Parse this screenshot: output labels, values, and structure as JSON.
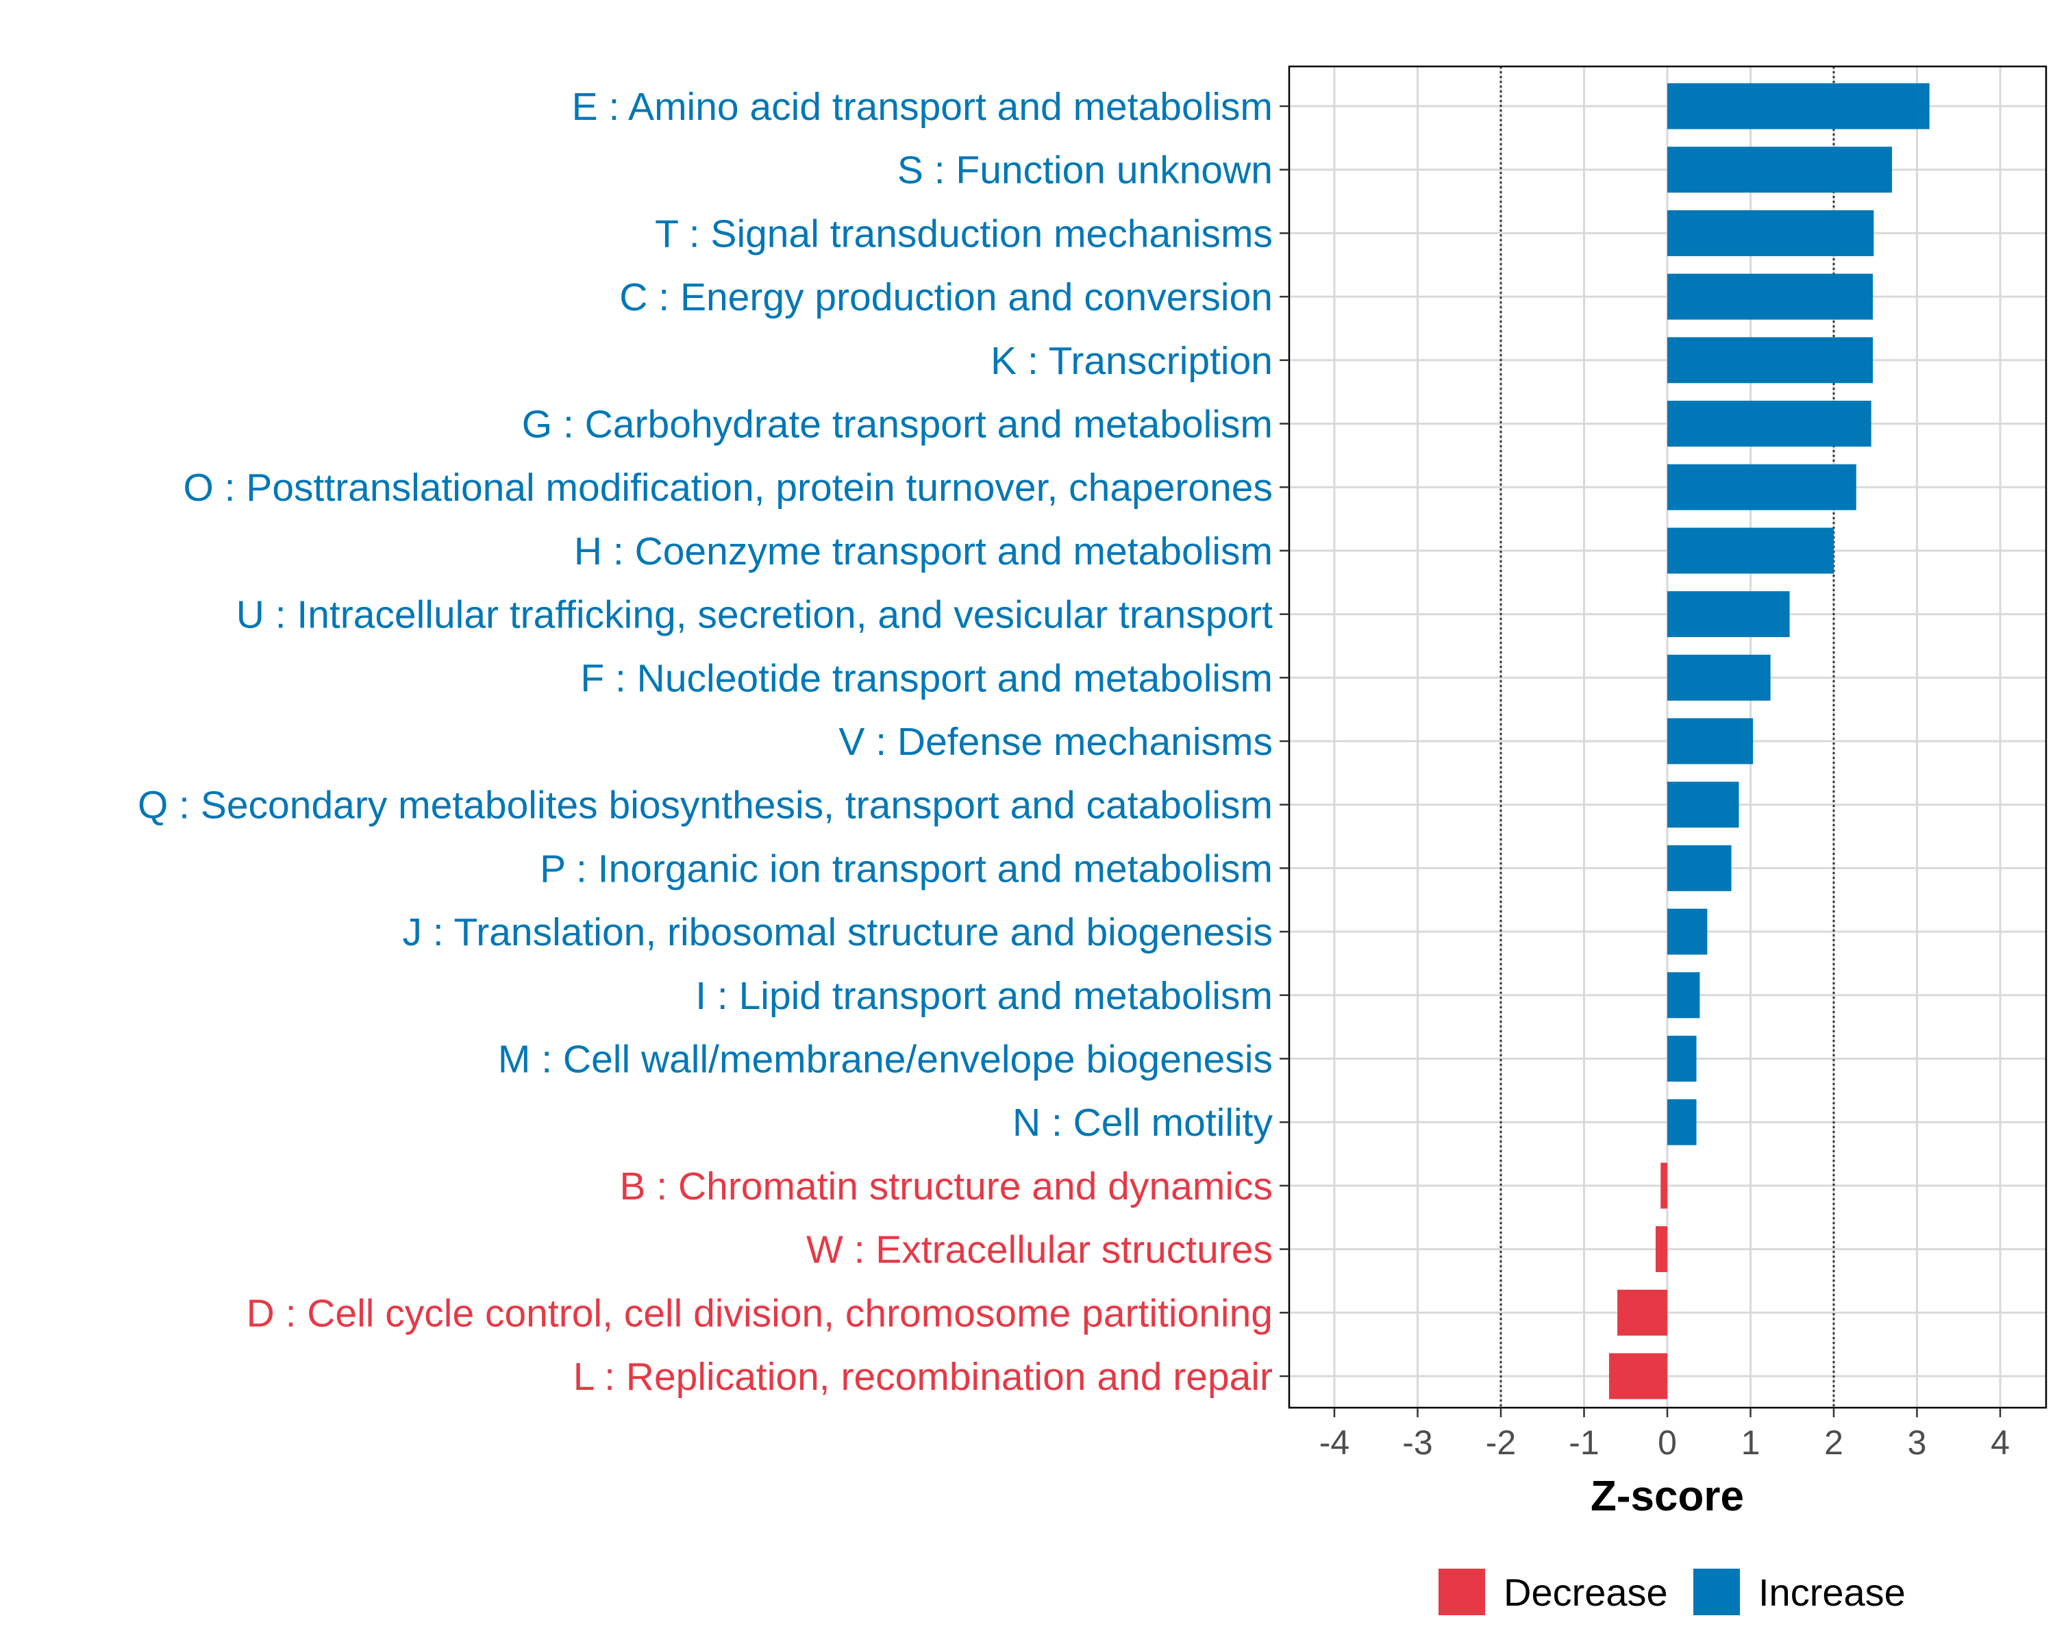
{
  "chart_data": {
    "type": "bar",
    "orientation": "horizontal",
    "xlabel": "Z-score",
    "ylabel": "",
    "xlim": [
      -4.55,
      4.55
    ],
    "xticks": [
      -4,
      -3,
      -2,
      -1,
      0,
      1,
      2,
      3,
      4
    ],
    "threshold_lines": [
      -2,
      2
    ],
    "grid": true,
    "legend_position": "bottom",
    "colors": {
      "Decrease": "#e63946",
      "Increase": "#0077b6"
    },
    "legend": [
      {
        "name": "Decrease",
        "color": "#e63946"
      },
      {
        "name": "Increase",
        "color": "#0077b6"
      }
    ],
    "categories": [
      "E : Amino acid transport and metabolism",
      "S : Function unknown",
      "T : Signal transduction mechanisms",
      "C : Energy production and conversion",
      "K : Transcription",
      "G : Carbohydrate transport and metabolism",
      "O : Posttranslational modification, protein turnover, chaperones",
      "H : Coenzyme transport and metabolism",
      "U : Intracellular trafficking, secretion, and vesicular transport",
      "F : Nucleotide transport and metabolism",
      "V : Defense mechanisms",
      "Q : Secondary metabolites biosynthesis, transport and catabolism",
      "P : Inorganic ion transport and metabolism",
      "J : Translation, ribosomal structure and biogenesis",
      "I : Lipid transport and metabolism",
      "M : Cell wall/membrane/envelope biogenesis",
      "N : Cell motility",
      "B : Chromatin structure and dynamics",
      "W : Extracellular structures",
      "D : Cell cycle control, cell division, chromosome partitioning",
      "L : Replication, recombination and repair"
    ],
    "values": [
      3.15,
      2.7,
      2.48,
      2.47,
      2.47,
      2.45,
      2.27,
      2.0,
      1.47,
      1.24,
      1.03,
      0.86,
      0.77,
      0.48,
      0.39,
      0.35,
      0.35,
      -0.08,
      -0.14,
      -0.6,
      -0.7
    ],
    "groups": [
      "Increase",
      "Increase",
      "Increase",
      "Increase",
      "Increase",
      "Increase",
      "Increase",
      "Increase",
      "Increase",
      "Increase",
      "Increase",
      "Increase",
      "Increase",
      "Increase",
      "Increase",
      "Increase",
      "Increase",
      "Decrease",
      "Decrease",
      "Decrease",
      "Decrease"
    ]
  }
}
